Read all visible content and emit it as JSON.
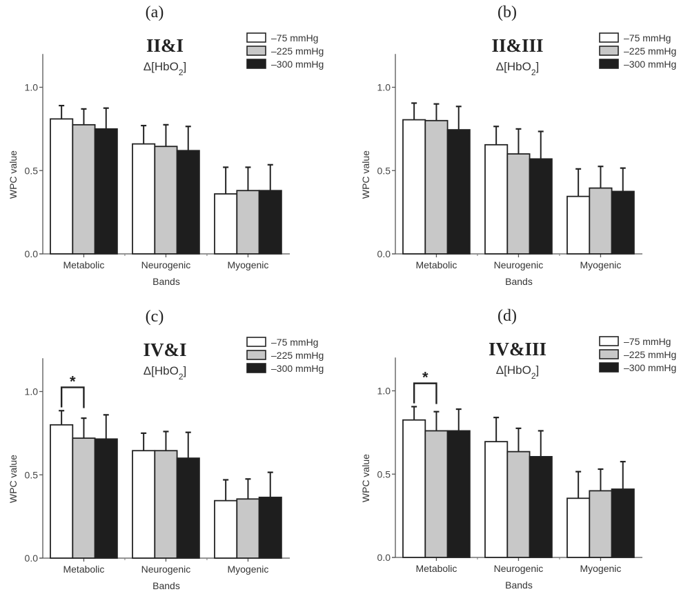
{
  "chart_data": [
    {
      "type": "bar",
      "panel_label": "(a)",
      "title": "II&I",
      "subtitle": "Δ[HbO2]",
      "xlabel": "Bands",
      "ylabel": "WPC value",
      "ylim": [
        0,
        1.2
      ],
      "yticks": [
        0.0,
        0.5,
        1.0
      ],
      "ytick_labels": [
        "0.0",
        "0.5",
        "1.0"
      ],
      "categories": [
        "Metabolic",
        "Neurogenic",
        "Myogenic"
      ],
      "legend_position": "top-right",
      "series": [
        {
          "name": "–75 mmHg",
          "color": "#ffffff",
          "values": [
            0.81,
            0.66,
            0.36
          ],
          "error_upper": [
            0.89,
            0.77,
            0.52
          ]
        },
        {
          "name": "–225 mmHg",
          "color": "#c8c8c8",
          "values": [
            0.775,
            0.645,
            0.38
          ],
          "error_upper": [
            0.87,
            0.775,
            0.52
          ]
        },
        {
          "name": "–300 mmHg",
          "color": "#1e1e1e",
          "values": [
            0.75,
            0.62,
            0.38
          ],
          "error_upper": [
            0.875,
            0.765,
            0.535
          ]
        }
      ],
      "significance": []
    },
    {
      "type": "bar",
      "panel_label": "(b)",
      "title": "II&III",
      "subtitle": "Δ[HbO2]",
      "xlabel": "Bands",
      "ylabel": "WPC value",
      "ylim": [
        0,
        1.2
      ],
      "yticks": [
        0.0,
        0.5,
        1.0
      ],
      "ytick_labels": [
        "0.0",
        "0.5",
        "1.0"
      ],
      "categories": [
        "Metabolic",
        "Neurogenic",
        "Myogenic"
      ],
      "legend_position": "top-right",
      "series": [
        {
          "name": "–75 mmHg",
          "color": "#ffffff",
          "values": [
            0.805,
            0.655,
            0.345
          ],
          "error_upper": [
            0.905,
            0.765,
            0.51
          ]
        },
        {
          "name": "–225 mmHg",
          "color": "#c8c8c8",
          "values": [
            0.8,
            0.6,
            0.395
          ],
          "error_upper": [
            0.9,
            0.75,
            0.525
          ]
        },
        {
          "name": "–300 mmHg",
          "color": "#1e1e1e",
          "values": [
            0.745,
            0.57,
            0.375
          ],
          "error_upper": [
            0.885,
            0.735,
            0.515
          ]
        }
      ],
      "significance": []
    },
    {
      "type": "bar",
      "panel_label": "(c)",
      "title": "IV&I",
      "subtitle": "Δ[HbO2]",
      "xlabel": "Bands",
      "ylabel": "WPC value",
      "ylim": [
        0,
        1.2
      ],
      "yticks": [
        0.0,
        0.5,
        1.0
      ],
      "ytick_labels": [
        "0.0",
        "0.5",
        "1.0"
      ],
      "categories": [
        "Metabolic",
        "Neurogenic",
        "Myogenic"
      ],
      "legend_position": "top-right",
      "series": [
        {
          "name": "–75 mmHg",
          "color": "#ffffff",
          "values": [
            0.8,
            0.645,
            0.345
          ],
          "error_upper": [
            0.885,
            0.75,
            0.47
          ]
        },
        {
          "name": "–225 mmHg",
          "color": "#c8c8c8",
          "values": [
            0.72,
            0.645,
            0.355
          ],
          "error_upper": [
            0.84,
            0.76,
            0.475
          ]
        },
        {
          "name": "–300 mmHg",
          "color": "#1e1e1e",
          "values": [
            0.715,
            0.6,
            0.365
          ],
          "error_upper": [
            0.86,
            0.755,
            0.515
          ]
        }
      ],
      "significance": [
        {
          "category": "Metabolic",
          "between": [
            "–75 mmHg",
            "–225 mmHg"
          ],
          "marker": "*"
        }
      ]
    },
    {
      "type": "bar",
      "panel_label": "(d)",
      "title": "IV&III",
      "subtitle": "Δ[HbO2]",
      "xlabel": "Bands",
      "ylabel": "WPC value",
      "ylim": [
        0,
        1.2
      ],
      "yticks": [
        0.0,
        0.5,
        1.0
      ],
      "ytick_labels": [
        "0.0",
        "0.5",
        "1.0"
      ],
      "categories": [
        "Metabolic",
        "Neurogenic",
        "Myogenic"
      ],
      "legend_position": "top-right",
      "series": [
        {
          "name": "–75 mmHg",
          "color": "#ffffff",
          "values": [
            0.825,
            0.695,
            0.355
          ],
          "error_upper": [
            0.905,
            0.84,
            0.515
          ]
        },
        {
          "name": "–225 mmHg",
          "color": "#c8c8c8",
          "values": [
            0.76,
            0.635,
            0.4
          ],
          "error_upper": [
            0.875,
            0.775,
            0.53
          ]
        },
        {
          "name": "–300 mmHg",
          "color": "#1e1e1e",
          "values": [
            0.76,
            0.605,
            0.41
          ],
          "error_upper": [
            0.89,
            0.76,
            0.575
          ]
        }
      ],
      "significance": [
        {
          "category": "Metabolic",
          "between": [
            "–75 mmHg",
            "–225 mmHg"
          ],
          "marker": "*"
        }
      ]
    }
  ]
}
